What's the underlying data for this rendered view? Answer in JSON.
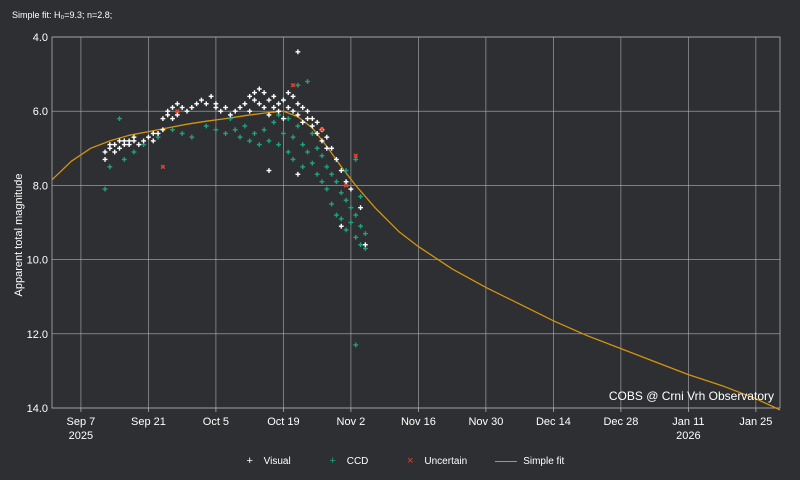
{
  "subtitle": "Simple fit: H₀=9.3; n=2.8;",
  "colors": {
    "background": "#2e2f32",
    "grid": "#b0b0b0",
    "visual": "#ffffff",
    "ccd": "#1fa37a",
    "uncertain": "#e0442c",
    "fit": "#d4940e"
  },
  "chart_data": {
    "type": "scatter",
    "title": "",
    "ylabel": "Apparent total magnitude",
    "xlabel": "",
    "y_inverted": true,
    "ylim": [
      4.0,
      14.0
    ],
    "yticks": [
      "4.0",
      "6.0",
      "8.0",
      "10.0",
      "12.0",
      "14.0"
    ],
    "xlim": [
      "2025-09-01",
      "2026-01-30"
    ],
    "xticks": [
      {
        "date": "2025-09-07",
        "label": "Sep 7",
        "sublabel": "2025"
      },
      {
        "date": "2025-09-21",
        "label": "Sep 21",
        "sublabel": ""
      },
      {
        "date": "2025-10-05",
        "label": "Oct 5",
        "sublabel": ""
      },
      {
        "date": "2025-10-19",
        "label": "Oct 19",
        "sublabel": ""
      },
      {
        "date": "2025-11-02",
        "label": "Nov 2",
        "sublabel": ""
      },
      {
        "date": "2025-11-16",
        "label": "Nov 16",
        "sublabel": ""
      },
      {
        "date": "2025-11-30",
        "label": "Nov 30",
        "sublabel": ""
      },
      {
        "date": "2025-12-14",
        "label": "Dec 14",
        "sublabel": ""
      },
      {
        "date": "2025-12-28",
        "label": "Dec 28",
        "sublabel": ""
      },
      {
        "date": "2026-01-11",
        "label": "Jan 11",
        "sublabel": "2026"
      },
      {
        "date": "2026-01-25",
        "label": "Jan 25",
        "sublabel": ""
      }
    ],
    "grid": true,
    "legend_position": "bottom-center",
    "credit": "COBS @ Crni Vrh Observatory",
    "series": [
      {
        "name": "Visual",
        "marker": "plus",
        "color": "#ffffff",
        "points": [
          [
            "2025-09-12",
            7.3
          ],
          [
            "2025-09-12",
            7.1
          ],
          [
            "2025-09-13",
            7.0
          ],
          [
            "2025-09-13",
            6.9
          ],
          [
            "2025-09-14",
            6.9
          ],
          [
            "2025-09-14",
            7.1
          ],
          [
            "2025-09-15",
            6.8
          ],
          [
            "2025-09-15",
            7.0
          ],
          [
            "2025-09-16",
            6.9
          ],
          [
            "2025-09-16",
            6.8
          ],
          [
            "2025-09-17",
            6.9
          ],
          [
            "2025-09-17",
            6.8
          ],
          [
            "2025-09-18",
            6.8
          ],
          [
            "2025-09-18",
            6.7
          ],
          [
            "2025-09-19",
            6.9
          ],
          [
            "2025-09-20",
            6.8
          ],
          [
            "2025-09-21",
            6.7
          ],
          [
            "2025-09-22",
            6.6
          ],
          [
            "2025-09-22",
            6.8
          ],
          [
            "2025-09-23",
            6.6
          ],
          [
            "2025-09-24",
            6.5
          ],
          [
            "2025-09-24",
            6.2
          ],
          [
            "2025-09-25",
            6.0
          ],
          [
            "2025-09-25",
            6.1
          ],
          [
            "2025-09-26",
            5.9
          ],
          [
            "2025-09-26",
            6.2
          ],
          [
            "2025-09-27",
            5.8
          ],
          [
            "2025-09-27",
            6.1
          ],
          [
            "2025-09-28",
            5.9
          ],
          [
            "2025-09-29",
            6.0
          ],
          [
            "2025-09-30",
            5.9
          ],
          [
            "2025-10-01",
            5.8
          ],
          [
            "2025-10-02",
            5.7
          ],
          [
            "2025-10-03",
            5.8
          ],
          [
            "2025-10-04",
            5.6
          ],
          [
            "2025-10-05",
            5.8
          ],
          [
            "2025-10-05",
            5.9
          ],
          [
            "2025-10-06",
            6.0
          ],
          [
            "2025-10-07",
            5.9
          ],
          [
            "2025-10-08",
            6.1
          ],
          [
            "2025-10-09",
            6.0
          ],
          [
            "2025-10-10",
            5.9
          ],
          [
            "2025-10-11",
            5.8
          ],
          [
            "2025-10-12",
            6.0
          ],
          [
            "2025-10-12",
            5.6
          ],
          [
            "2025-10-13",
            5.5
          ],
          [
            "2025-10-13",
            5.7
          ],
          [
            "2025-10-14",
            5.4
          ],
          [
            "2025-10-14",
            5.8
          ],
          [
            "2025-10-15",
            5.5
          ],
          [
            "2025-10-15",
            5.9
          ],
          [
            "2025-10-16",
            5.7
          ],
          [
            "2025-10-16",
            6.1
          ],
          [
            "2025-10-17",
            5.6
          ],
          [
            "2025-10-17",
            5.9
          ],
          [
            "2025-10-18",
            5.8
          ],
          [
            "2025-10-18",
            6.0
          ],
          [
            "2025-10-19",
            5.7
          ],
          [
            "2025-10-19",
            6.2
          ],
          [
            "2025-10-20",
            5.5
          ],
          [
            "2025-10-20",
            5.9
          ],
          [
            "2025-10-21",
            5.6
          ],
          [
            "2025-10-21",
            6.0
          ],
          [
            "2025-10-22",
            5.8
          ],
          [
            "2025-10-22",
            6.1
          ],
          [
            "2025-10-23",
            5.9
          ],
          [
            "2025-10-23",
            6.3
          ],
          [
            "2025-10-24",
            6.0
          ],
          [
            "2025-10-24",
            6.2
          ],
          [
            "2025-10-25",
            6.2
          ],
          [
            "2025-10-25",
            6.4
          ],
          [
            "2025-10-26",
            6.3
          ],
          [
            "2025-10-26",
            6.6
          ],
          [
            "2025-10-27",
            6.5
          ],
          [
            "2025-10-27",
            6.8
          ],
          [
            "2025-10-28",
            6.7
          ],
          [
            "2025-10-28",
            7.0
          ],
          [
            "2025-10-29",
            7.0
          ],
          [
            "2025-10-30",
            7.3
          ],
          [
            "2025-10-31",
            7.6
          ],
          [
            "2025-11-01",
            7.9
          ],
          [
            "2025-11-02",
            8.1
          ],
          [
            "2025-11-04",
            8.6
          ],
          [
            "2025-10-31",
            9.1
          ],
          [
            "2025-10-16",
            7.6
          ],
          [
            "2025-10-22",
            7.7
          ],
          [
            "2025-10-22",
            4.4
          ],
          [
            "2025-11-05",
            9.6
          ]
        ]
      },
      {
        "name": "CCD",
        "marker": "plus",
        "color": "#1fa37a",
        "points": [
          [
            "2025-09-12",
            8.1
          ],
          [
            "2025-09-13",
            7.5
          ],
          [
            "2025-09-15",
            6.2
          ],
          [
            "2025-09-16",
            7.3
          ],
          [
            "2025-09-18",
            7.1
          ],
          [
            "2025-09-20",
            6.9
          ],
          [
            "2025-09-23",
            6.7
          ],
          [
            "2025-09-26",
            6.5
          ],
          [
            "2025-09-28",
            6.6
          ],
          [
            "2025-09-30",
            6.7
          ],
          [
            "2025-10-03",
            6.4
          ],
          [
            "2025-10-05",
            6.5
          ],
          [
            "2025-10-07",
            6.6
          ],
          [
            "2025-10-09",
            6.5
          ],
          [
            "2025-10-10",
            6.7
          ],
          [
            "2025-10-11",
            6.4
          ],
          [
            "2025-10-12",
            6.8
          ],
          [
            "2025-10-13",
            6.6
          ],
          [
            "2025-10-14",
            6.9
          ],
          [
            "2025-10-15",
            6.5
          ],
          [
            "2025-10-16",
            6.8
          ],
          [
            "2025-10-17",
            6.3
          ],
          [
            "2025-10-18",
            6.9
          ],
          [
            "2025-10-19",
            6.6
          ],
          [
            "2025-10-20",
            6.2
          ],
          [
            "2025-10-20",
            7.1
          ],
          [
            "2025-10-21",
            6.7
          ],
          [
            "2025-10-21",
            7.3
          ],
          [
            "2025-10-22",
            6.4
          ],
          [
            "2025-10-22",
            5.3
          ],
          [
            "2025-10-23",
            6.9
          ],
          [
            "2025-10-23",
            7.5
          ],
          [
            "2025-10-24",
            5.2
          ],
          [
            "2025-10-24",
            7.1
          ],
          [
            "2025-10-25",
            6.6
          ],
          [
            "2025-10-25",
            7.4
          ],
          [
            "2025-10-26",
            7.0
          ],
          [
            "2025-10-26",
            7.7
          ],
          [
            "2025-10-27",
            7.2
          ],
          [
            "2025-10-27",
            7.9
          ],
          [
            "2025-10-28",
            7.5
          ],
          [
            "2025-10-28",
            8.1
          ],
          [
            "2025-10-29",
            7.7
          ],
          [
            "2025-10-29",
            8.5
          ],
          [
            "2025-10-30",
            7.9
          ],
          [
            "2025-10-30",
            8.8
          ],
          [
            "2025-10-31",
            8.2
          ],
          [
            "2025-10-31",
            8.9
          ],
          [
            "2025-11-01",
            8.4
          ],
          [
            "2025-11-01",
            9.2
          ],
          [
            "2025-11-02",
            8.6
          ],
          [
            "2025-11-02",
            9.0
          ],
          [
            "2025-11-03",
            8.8
          ],
          [
            "2025-11-03",
            9.4
          ],
          [
            "2025-11-04",
            9.1
          ],
          [
            "2025-11-04",
            9.6
          ],
          [
            "2025-11-05",
            9.3
          ],
          [
            "2025-11-05",
            9.7
          ],
          [
            "2025-11-03",
            12.3
          ],
          [
            "2025-11-03",
            7.3
          ],
          [
            "2025-11-01",
            7.6
          ],
          [
            "2025-10-19",
            5.7
          ],
          [
            "2025-10-18",
            6.1
          ],
          [
            "2025-10-08",
            6.2
          ],
          [
            "2025-11-04",
            8.3
          ]
        ]
      },
      {
        "name": "Uncertain",
        "marker": "x",
        "color": "#e0442c",
        "points": [
          [
            "2025-09-24",
            7.5
          ],
          [
            "2025-09-27",
            6.0
          ],
          [
            "2025-10-21",
            5.3
          ],
          [
            "2025-10-27",
            6.5
          ],
          [
            "2025-11-01",
            8.0
          ],
          [
            "2025-11-03",
            7.2
          ]
        ]
      },
      {
        "name": "Simple fit",
        "marker": "line",
        "color": "#d4940e",
        "points": [
          [
            "2025-09-01",
            7.85
          ],
          [
            "2025-09-05",
            7.35
          ],
          [
            "2025-09-09",
            7.0
          ],
          [
            "2025-09-13",
            6.8
          ],
          [
            "2025-09-17",
            6.65
          ],
          [
            "2025-09-21",
            6.55
          ],
          [
            "2025-09-25",
            6.45
          ],
          [
            "2025-09-29",
            6.35
          ],
          [
            "2025-10-03",
            6.27
          ],
          [
            "2025-10-07",
            6.2
          ],
          [
            "2025-10-11",
            6.12
          ],
          [
            "2025-10-15",
            6.05
          ],
          [
            "2025-10-19",
            6.0
          ],
          [
            "2025-10-22",
            6.15
          ],
          [
            "2025-10-25",
            6.45
          ],
          [
            "2025-10-28",
            6.95
          ],
          [
            "2025-10-31",
            7.5
          ],
          [
            "2025-11-03",
            8.0
          ],
          [
            "2025-11-07",
            8.6
          ],
          [
            "2025-11-12",
            9.25
          ],
          [
            "2025-11-16",
            9.65
          ],
          [
            "2025-11-23",
            10.25
          ],
          [
            "2025-11-30",
            10.75
          ],
          [
            "2025-12-07",
            11.2
          ],
          [
            "2025-12-14",
            11.65
          ],
          [
            "2025-12-21",
            12.05
          ],
          [
            "2025-12-28",
            12.4
          ],
          [
            "2026-01-04",
            12.75
          ],
          [
            "2026-01-11",
            13.1
          ],
          [
            "2026-01-18",
            13.4
          ],
          [
            "2026-01-25",
            13.75
          ],
          [
            "2026-01-30",
            14.05
          ]
        ]
      }
    ]
  },
  "legend": [
    {
      "label": "Visual",
      "symbol": "+",
      "color": "#ffffff"
    },
    {
      "label": "CCD",
      "symbol": "+",
      "color": "#1fa37a"
    },
    {
      "label": "Uncertain",
      "symbol": "×",
      "color": "#e0442c"
    },
    {
      "label": "Simple fit",
      "symbol": "line",
      "color": "#d4940e"
    }
  ]
}
